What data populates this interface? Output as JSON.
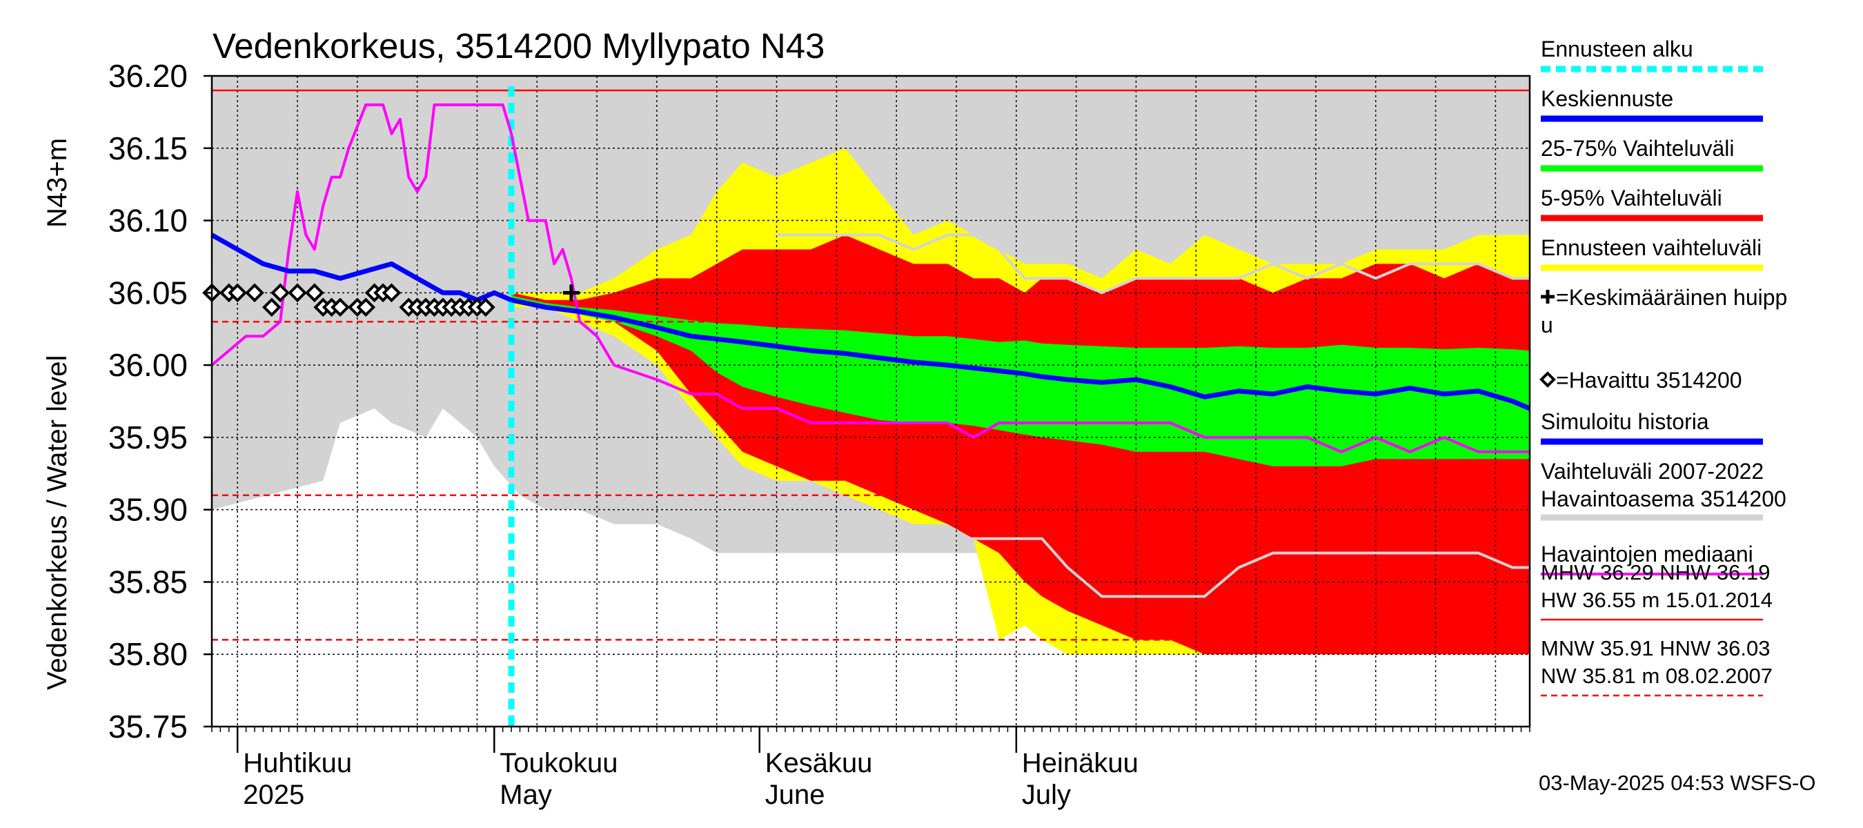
{
  "chart_data": {
    "type": "area",
    "title": "Vedenkorkeus, 3514200 Myllypato N43",
    "ylabel_main": "Vedenkorkeus / Water level",
    "ylabel_unit": "N43+m",
    "ylim": [
      35.75,
      36.2
    ],
    "yticks": [
      "36.20",
      "36.15",
      "36.10",
      "36.05",
      "36.00",
      "35.95",
      "35.90",
      "35.85",
      "35.80",
      "35.75"
    ],
    "x_range_days": [
      -33,
      121
    ],
    "x_reference_date": "2025-05-01",
    "month_labels": [
      {
        "fi": "Huhtikuu",
        "en": "2025",
        "day": -30
      },
      {
        "fi": "Toukokuu",
        "en": "May",
        "day": 0
      },
      {
        "fi": "Kesäkuu",
        "en": "June",
        "day": 31
      },
      {
        "fi": "Heinäkuu",
        "en": "July",
        "day": 61
      }
    ],
    "forecast_start_day": 2,
    "reference_lines": [
      {
        "label": "NHW",
        "value": 36.19,
        "style": "solid",
        "color": "#ff0000"
      },
      {
        "label": "HNW",
        "value": 36.03,
        "style": "dashed",
        "color": "#ff0000"
      },
      {
        "label": "MNW",
        "value": 35.91,
        "style": "dashed",
        "color": "#ff0000"
      },
      {
        "label": "NW",
        "value": 35.81,
        "style": "dashed",
        "color": "#ff0000"
      }
    ],
    "series": [
      {
        "name": "Vaihteluväli 2007-2022 Havaintoasema 3514200",
        "kind": "band",
        "color": "#d3d3d3",
        "x": [
          -33,
          -20,
          -18,
          -14,
          -12,
          -8,
          -6,
          -4,
          -2,
          0,
          3,
          6,
          10,
          14,
          19,
          23,
          26,
          29,
          33,
          37,
          41,
          45,
          49,
          53,
          56,
          59,
          62,
          64,
          67,
          71,
          75,
          79,
          83,
          87,
          91,
          95,
          99,
          103,
          107,
          111,
          115,
          119,
          121
        ],
        "upper": [
          36.2,
          36.2,
          36.2,
          36.2,
          36.2,
          36.2,
          36.2,
          36.2,
          36.2,
          36.2,
          36.2,
          36.2,
          36.2,
          36.2,
          36.2,
          36.2,
          36.2,
          36.2,
          36.2,
          36.2,
          36.2,
          36.2,
          36.2,
          36.2,
          36.2,
          36.2,
          36.2,
          36.2,
          36.2,
          36.2,
          36.2,
          36.2,
          36.2,
          36.2,
          36.2,
          36.2,
          36.2,
          36.2,
          36.2,
          36.2,
          36.2,
          36.2,
          36.2
        ],
        "lower": [
          35.9,
          35.92,
          35.96,
          35.97,
          35.96,
          35.95,
          35.97,
          35.96,
          35.95,
          35.93,
          35.91,
          35.9,
          35.9,
          35.89,
          35.89,
          35.88,
          35.87,
          35.87,
          35.87,
          35.87,
          35.87,
          35.87,
          35.87,
          35.87,
          35.87,
          35.87,
          35.87,
          35.87,
          35.87,
          35.87,
          35.87,
          35.87,
          35.87,
          35.87,
          35.87,
          35.87,
          35.87,
          35.87,
          35.87,
          35.87,
          35.87,
          35.87,
          35.87
        ]
      },
      {
        "name": "Ennusteen vaihteluväli",
        "kind": "band",
        "color": "#ffff00",
        "x": [
          2,
          6,
          10,
          14,
          19,
          23,
          26,
          29,
          33,
          37,
          41,
          45,
          49,
          53,
          56,
          59,
          62,
          64,
          67,
          71,
          75,
          79,
          83,
          87,
          91,
          95,
          99,
          103,
          107,
          111,
          115,
          119,
          121
        ],
        "upper": [
          36.05,
          36.05,
          36.05,
          36.06,
          36.08,
          36.09,
          36.12,
          36.14,
          36.13,
          36.14,
          36.15,
          36.12,
          36.09,
          36.1,
          36.09,
          36.08,
          36.07,
          36.07,
          36.07,
          36.06,
          36.08,
          36.07,
          36.09,
          36.08,
          36.07,
          36.07,
          36.07,
          36.08,
          36.08,
          36.08,
          36.09,
          36.09,
          36.09
        ],
        "lower": [
          36.04,
          36.04,
          36.03,
          36.02,
          36.0,
          35.97,
          35.95,
          35.93,
          35.92,
          35.92,
          35.91,
          35.9,
          35.89,
          35.89,
          35.88,
          35.81,
          35.82,
          35.81,
          35.8,
          35.8,
          35.8,
          35.8,
          35.8,
          35.8,
          35.8,
          35.8,
          35.8,
          35.8,
          35.8,
          35.8,
          35.8,
          35.8,
          35.8
        ]
      },
      {
        "name": "5-95% Vaihteluväli",
        "kind": "band",
        "color": "#ff0000",
        "x": [
          2,
          6,
          10,
          14,
          19,
          23,
          26,
          29,
          33,
          37,
          41,
          45,
          49,
          53,
          56,
          59,
          62,
          64,
          67,
          71,
          75,
          79,
          83,
          87,
          91,
          95,
          99,
          103,
          107,
          111,
          115,
          119,
          121
        ],
        "upper": [
          36.05,
          36.045,
          36.045,
          36.05,
          36.06,
          36.06,
          36.07,
          36.08,
          36.08,
          36.08,
          36.09,
          36.08,
          36.07,
          36.07,
          36.06,
          36.06,
          36.05,
          36.06,
          36.06,
          36.05,
          36.06,
          36.06,
          36.06,
          36.06,
          36.05,
          36.06,
          36.06,
          36.07,
          36.07,
          36.06,
          36.07,
          36.06,
          36.06
        ],
        "lower": [
          36.045,
          36.04,
          36.035,
          36.03,
          36.01,
          35.98,
          35.96,
          35.94,
          35.93,
          35.92,
          35.92,
          35.91,
          35.9,
          35.89,
          35.88,
          35.87,
          35.85,
          35.84,
          35.83,
          35.82,
          35.81,
          35.81,
          35.8,
          35.8,
          35.8,
          35.8,
          35.8,
          35.8,
          35.8,
          35.8,
          35.8,
          35.8,
          35.8
        ]
      },
      {
        "name": "25-75% Vaihteluväli",
        "kind": "band",
        "color": "#00ff00",
        "x": [
          2,
          6,
          10,
          14,
          19,
          23,
          26,
          29,
          33,
          37,
          41,
          45,
          49,
          53,
          56,
          59,
          62,
          64,
          67,
          71,
          75,
          79,
          83,
          87,
          91,
          95,
          99,
          103,
          107,
          111,
          115,
          119,
          121
        ],
        "upper": [
          36.048,
          36.043,
          36.04,
          36.038,
          36.034,
          36.031,
          36.029,
          36.028,
          36.026,
          36.025,
          36.024,
          36.022,
          36.02,
          36.02,
          36.018,
          36.016,
          36.017,
          36.015,
          36.014,
          36.013,
          36.012,
          36.012,
          36.012,
          36.013,
          36.012,
          36.012,
          36.014,
          36.012,
          36.012,
          36.011,
          36.012,
          36.011,
          36.01
        ],
        "lower": [
          36.045,
          36.04,
          36.035,
          36.03,
          36.02,
          36.01,
          35.995,
          35.985,
          35.978,
          35.972,
          35.967,
          35.962,
          35.96,
          35.96,
          35.958,
          35.955,
          35.952,
          35.95,
          35.948,
          35.945,
          35.94,
          35.94,
          35.94,
          35.935,
          35.93,
          35.93,
          35.93,
          35.935,
          35.935,
          35.935,
          35.935,
          35.935,
          35.935
        ]
      },
      {
        "name": "Keskiennuste",
        "kind": "line",
        "color": "#0000ff",
        "width": 7,
        "x": [
          2,
          6,
          10,
          14,
          19,
          23,
          26,
          29,
          33,
          37,
          41,
          45,
          49,
          53,
          56,
          59,
          62,
          64,
          67,
          71,
          75,
          79,
          83,
          87,
          91,
          95,
          99,
          103,
          107,
          111,
          115,
          119,
          121
        ],
        "y": [
          36.045,
          36.04,
          36.037,
          36.033,
          36.026,
          36.02,
          36.018,
          36.016,
          36.013,
          36.01,
          36.008,
          36.005,
          36.002,
          36.0,
          35.998,
          35.996,
          35.994,
          35.992,
          35.99,
          35.988,
          35.99,
          35.985,
          35.978,
          35.982,
          35.98,
          35.985,
          35.982,
          35.98,
          35.984,
          35.98,
          35.982,
          35.975,
          35.97
        ]
      },
      {
        "name": "Simuloitu historia",
        "kind": "line",
        "color": "#0000ff",
        "width": 7,
        "x": [
          -33,
          -30,
          -27,
          -24,
          -21,
          -18,
          -15,
          -12,
          -9,
          -6,
          -4,
          -2,
          0,
          2
        ],
        "y": [
          36.09,
          36.08,
          36.07,
          36.065,
          36.065,
          36.06,
          36.065,
          36.07,
          36.06,
          36.05,
          36.05,
          36.045,
          36.05,
          36.045
        ]
      },
      {
        "name": "Havaintojen mediaani",
        "kind": "line",
        "color": "#ff00ff",
        "width": 4,
        "x": [
          -33,
          -31,
          -29,
          -27,
          -25,
          -24,
          -23,
          -22,
          -21,
          -20,
          -19,
          -18,
          -17,
          -15,
          -13,
          -12,
          -11,
          -10,
          -9,
          -8,
          -7,
          -6,
          -5,
          -4,
          -3,
          -2,
          0,
          1,
          2,
          3,
          4,
          5,
          6,
          7,
          8,
          9,
          10,
          12,
          14,
          19,
          23,
          26,
          29,
          33,
          37,
          41,
          45,
          49,
          53,
          56,
          59,
          62,
          64,
          67,
          71,
          75,
          79,
          83,
          87,
          91,
          95,
          99,
          103,
          107,
          111,
          115,
          119,
          121
        ],
        "y": [
          36.0,
          36.01,
          36.02,
          36.02,
          36.03,
          36.08,
          36.12,
          36.09,
          36.08,
          36.11,
          36.13,
          36.13,
          36.15,
          36.18,
          36.18,
          36.16,
          36.17,
          36.13,
          36.12,
          36.13,
          36.18,
          36.18,
          36.18,
          36.18,
          36.18,
          36.18,
          36.18,
          36.18,
          36.16,
          36.13,
          36.1,
          36.1,
          36.1,
          36.07,
          36.08,
          36.06,
          36.03,
          36.02,
          36.0,
          35.99,
          35.98,
          35.98,
          35.97,
          35.97,
          35.96,
          35.96,
          35.96,
          35.96,
          35.96,
          35.95,
          35.96,
          35.96,
          35.96,
          35.96,
          35.96,
          35.96,
          35.96,
          35.95,
          35.95,
          35.95,
          35.95,
          35.94,
          35.95,
          35.94,
          35.95,
          35.94,
          35.94,
          35.94
        ]
      },
      {
        "name": "Vaihteluväli 2007-2022 ylempi",
        "kind": "line",
        "color": "#d3d3d3",
        "width": 4,
        "x": [
          33,
          45,
          49,
          53,
          56,
          59,
          62,
          64,
          67,
          71,
          75,
          79,
          83,
          87,
          91,
          95,
          99,
          103,
          107,
          111,
          115,
          119,
          121
        ],
        "y": [
          36.09,
          36.09,
          36.08,
          36.09,
          36.09,
          36.08,
          36.06,
          36.06,
          36.06,
          36.05,
          36.06,
          36.06,
          36.06,
          36.06,
          36.07,
          36.06,
          36.07,
          36.06,
          36.07,
          36.07,
          36.07,
          36.06,
          36.06
        ]
      },
      {
        "name": "Vaihteluväli 2007-2022 alempi",
        "kind": "line",
        "color": "#d3d3d3",
        "width": 4,
        "x": [
          33,
          45,
          53,
          59,
          64,
          67,
          71,
          75,
          79,
          83,
          87,
          91,
          95,
          99,
          103,
          107,
          111,
          115,
          119,
          121
        ],
        "y": [
          35.88,
          35.88,
          35.88,
          35.88,
          35.88,
          35.86,
          35.84,
          35.84,
          35.84,
          35.84,
          35.86,
          35.87,
          35.87,
          35.87,
          35.87,
          35.87,
          35.87,
          35.87,
          35.86,
          35.86
        ]
      },
      {
        "name": "Havaittu 3514200",
        "kind": "markers",
        "marker": "diamond",
        "color": "#000000",
        "x": [
          -33,
          -31,
          -30,
          -28,
          -26,
          -25,
          -23,
          -21,
          -20,
          -19,
          -18,
          -16,
          -15,
          -14,
          -13,
          -12,
          -10,
          -9,
          -8,
          -7,
          -6,
          -5,
          -4,
          -3,
          -2,
          -1
        ],
        "y": [
          36.05,
          36.05,
          36.05,
          36.05,
          36.04,
          36.05,
          36.05,
          36.05,
          36.04,
          36.04,
          36.04,
          36.04,
          36.04,
          36.05,
          36.05,
          36.05,
          36.04,
          36.04,
          36.04,
          36.04,
          36.04,
          36.04,
          36.04,
          36.04,
          36.04,
          36.04
        ]
      },
      {
        "name": "Keskimääräinen huippu",
        "kind": "markers",
        "marker": "plus",
        "color": "#000000",
        "x": [
          9
        ],
        "y": [
          36.05
        ]
      }
    ],
    "legend": {
      "placement": "right",
      "items": [
        {
          "label": "Ennusteen alku",
          "swatch": "dashed",
          "color": "#00ffff"
        },
        {
          "label": "Keskiennuste",
          "swatch": "line",
          "color": "#0000ff"
        },
        {
          "label": "25-75% Vaihteluväli",
          "swatch": "line",
          "color": "#00ff00"
        },
        {
          "label": "5-95% Vaihteluväli",
          "swatch": "line",
          "color": "#ff0000"
        },
        {
          "label": "Ennusteen vaihteluväli",
          "swatch": "line",
          "color": "#ffff00"
        },
        {
          "label": "=Keskimääräinen huipp",
          "label2": "u",
          "swatch": "plus",
          "color": "#000000"
        },
        {
          "label": "=Havaittu 3514200",
          "swatch": "diamond",
          "color": "#000000"
        },
        {
          "label": "Simuloitu historia",
          "swatch": "line",
          "color": "#0000ff"
        },
        {
          "label": "Vaihteluväli 2007-2022",
          "label2": " Havaintoasema 3514200",
          "swatch": "line",
          "color": "#d3d3d3"
        },
        {
          "label": "Havaintojen mediaani",
          "swatch": "thin",
          "color": "#ff00ff"
        }
      ],
      "stats": [
        {
          "line1": "MHW  36.29 NHW  36.19",
          "line2": "HW  36.55 m 15.01.2014",
          "swatch": "solid",
          "color": "#ff0000"
        },
        {
          "line1": "MNW  35.91 HNW  36.03",
          "line2": "NW  35.81 m 08.02.2007",
          "swatch": "dashed",
          "color": "#ff0000"
        }
      ]
    },
    "footer": "03-May-2025 04:53 WSFS-O",
    "grid": true
  }
}
